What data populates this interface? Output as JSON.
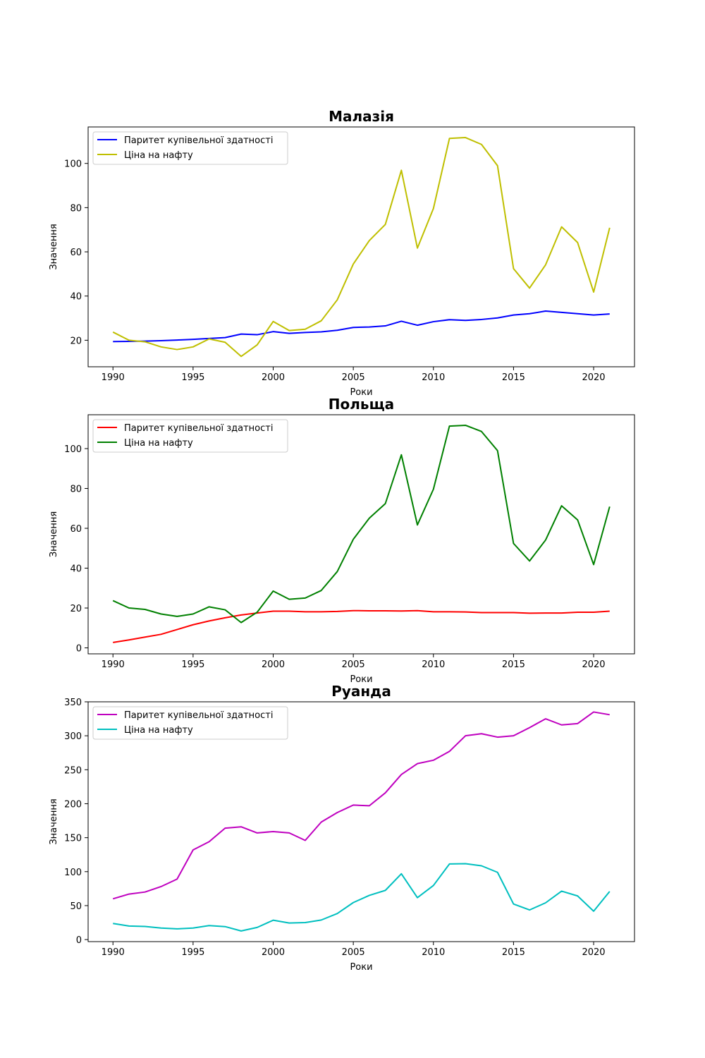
{
  "chart_data": [
    {
      "type": "line",
      "title": "Малазія",
      "xlabel": "Роки",
      "ylabel": "Значення",
      "xlim": [
        1988.45,
        2022.55
      ],
      "ylim": [
        8.0,
        116.5
      ],
      "xticks": [
        1990,
        1995,
        2000,
        2005,
        2010,
        2015,
        2020
      ],
      "yticks": [
        20,
        40,
        60,
        80,
        100
      ],
      "legend": "top-left",
      "grid": false,
      "x": [
        1990,
        1991,
        1992,
        1993,
        1994,
        1995,
        1996,
        1997,
        1998,
        1999,
        2000,
        2001,
        2002,
        2003,
        2004,
        2005,
        2006,
        2007,
        2008,
        2009,
        2010,
        2011,
        2012,
        2013,
        2014,
        2015,
        2016,
        2017,
        2018,
        2019,
        2020,
        2021
      ],
      "series": [
        {
          "name": "Паритет купівельної здатності",
          "color": "#0000ff",
          "values": [
            19.4,
            19.5,
            19.6,
            19.8,
            20.1,
            20.4,
            20.8,
            21.2,
            22.8,
            22.5,
            23.9,
            23.1,
            23.5,
            23.8,
            24.5,
            25.8,
            26.0,
            26.5,
            28.6,
            26.8,
            28.4,
            29.3,
            29.0,
            29.4,
            30.1,
            31.4,
            32.0,
            33.2,
            32.6,
            32.0,
            31.4,
            31.9
          ]
        },
        {
          "name": "Ціна на нафту",
          "color": "#bfbf00",
          "values": [
            23.7,
            20.0,
            19.3,
            17.0,
            15.8,
            17.0,
            20.6,
            19.1,
            12.7,
            17.9,
            28.5,
            24.4,
            25.0,
            28.8,
            38.3,
            54.5,
            65.1,
            72.4,
            96.9,
            61.7,
            79.6,
            111.3,
            111.7,
            108.6,
            99.0,
            52.4,
            43.6,
            54.1,
            71.3,
            64.2,
            41.8,
            70.9
          ]
        }
      ]
    },
    {
      "type": "line",
      "title": "Польща",
      "xlabel": "Роки",
      "ylabel": "Значення",
      "xlim": [
        1988.45,
        2022.55
      ],
      "ylim": [
        -3.0,
        117.0
      ],
      "xticks": [
        1990,
        1995,
        2000,
        2005,
        2010,
        2015,
        2020
      ],
      "yticks": [
        0,
        20,
        40,
        60,
        80,
        100
      ],
      "legend": "top-left",
      "grid": false,
      "x": [
        1990,
        1991,
        1992,
        1993,
        1994,
        1995,
        1996,
        1997,
        1998,
        1999,
        2000,
        2001,
        2002,
        2003,
        2004,
        2005,
        2006,
        2007,
        2008,
        2009,
        2010,
        2011,
        2012,
        2013,
        2014,
        2015,
        2016,
        2017,
        2018,
        2019,
        2020,
        2021
      ],
      "series": [
        {
          "name": "Паритет купівельної здатності",
          "color": "#ff0000",
          "values": [
            2.7,
            4.0,
            5.4,
            6.8,
            9.2,
            11.6,
            13.5,
            15.1,
            16.5,
            17.5,
            18.4,
            18.4,
            18.1,
            18.1,
            18.3,
            18.7,
            18.6,
            18.6,
            18.5,
            18.7,
            18.1,
            18.1,
            18.0,
            17.7,
            17.7,
            17.7,
            17.4,
            17.5,
            17.5,
            17.9,
            17.9,
            18.4
          ]
        },
        {
          "name": "Ціна на нафту",
          "color": "#008000",
          "values": [
            23.7,
            20.0,
            19.3,
            17.0,
            15.8,
            17.0,
            20.6,
            19.1,
            12.7,
            17.9,
            28.5,
            24.4,
            25.0,
            28.8,
            38.3,
            54.5,
            65.1,
            72.4,
            96.9,
            61.7,
            79.6,
            111.3,
            111.7,
            108.6,
            99.0,
            52.4,
            43.6,
            54.1,
            71.3,
            64.2,
            41.8,
            70.9
          ]
        }
      ]
    },
    {
      "type": "line",
      "title": "Руанда",
      "xlabel": "Роки",
      "ylabel": "Значення",
      "xlim": [
        1988.45,
        2022.55
      ],
      "ylim": [
        -3.0,
        350.0
      ],
      "xticks": [
        1990,
        1995,
        2000,
        2005,
        2010,
        2015,
        2020
      ],
      "yticks": [
        0,
        50,
        100,
        150,
        200,
        250,
        300,
        350
      ],
      "legend": "top-left",
      "grid": false,
      "x": [
        1990,
        1991,
        1992,
        1993,
        1994,
        1995,
        1996,
        1997,
        1998,
        1999,
        2000,
        2001,
        2002,
        2003,
        2004,
        2005,
        2006,
        2007,
        2008,
        2009,
        2010,
        2011,
        2012,
        2013,
        2014,
        2015,
        2016,
        2017,
        2018,
        2019,
        2020,
        2021
      ],
      "series": [
        {
          "name": "Паритет купівельної здатності",
          "color": "#bf00bf",
          "values": [
            60,
            67,
            70,
            78,
            89,
            132,
            144,
            164,
            166,
            157,
            159,
            157,
            146,
            173,
            187,
            198,
            197,
            216,
            243,
            259,
            264,
            277,
            300,
            303,
            298,
            300,
            312,
            325,
            316,
            318,
            335,
            331
          ]
        },
        {
          "name": "Ціна на нафту",
          "color": "#00bfbf",
          "values": [
            23.7,
            20.0,
            19.3,
            17.0,
            15.8,
            17.0,
            20.6,
            19.1,
            12.7,
            17.9,
            28.5,
            24.4,
            25.0,
            28.8,
            38.3,
            54.5,
            65.1,
            72.4,
            96.9,
            61.7,
            79.6,
            111.3,
            111.7,
            108.6,
            99.0,
            52.4,
            43.6,
            54.1,
            71.3,
            64.2,
            41.8,
            70.9
          ]
        }
      ]
    }
  ]
}
